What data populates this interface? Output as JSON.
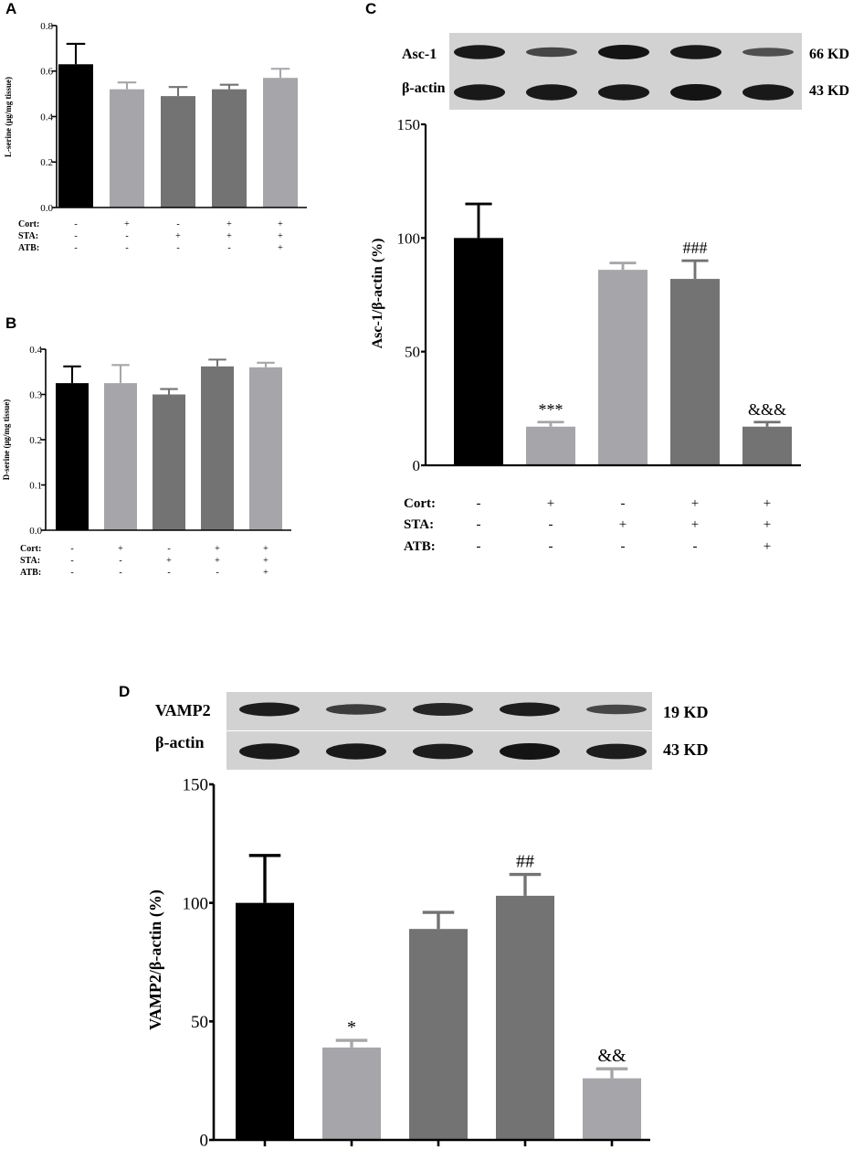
{
  "panels": {
    "A": {
      "label": "A"
    },
    "B": {
      "label": "B"
    },
    "C": {
      "label": "C",
      "blot": {
        "rows": [
          "Asc-1",
          "β-actin"
        ],
        "sizes": [
          "66 KD",
          "43 KD"
        ],
        "band_intensity": [
          [
            0.95,
            0.45,
            1.0,
            0.95,
            0.35
          ],
          [
            0.95,
            0.95,
            0.95,
            1.0,
            0.95
          ]
        ]
      }
    },
    "D": {
      "label": "D",
      "blot": {
        "rows": [
          "VAMP2",
          "β-actin"
        ],
        "sizes": [
          "19 KD",
          "43 KD"
        ],
        "band_intensity": [
          [
            0.9,
            0.55,
            0.8,
            0.9,
            0.45
          ],
          [
            0.95,
            0.95,
            0.9,
            1.0,
            0.9
          ]
        ]
      }
    }
  },
  "treatments": {
    "labels": [
      "Cort:",
      "STA:",
      "ATB:"
    ],
    "Cort": [
      "-",
      "+",
      "-",
      "+",
      "+"
    ],
    "STA": [
      "-",
      "-",
      "+",
      "+",
      "+"
    ],
    "ATB": [
      "-",
      "-",
      "-",
      "-",
      "+"
    ]
  },
  "colors": {
    "group1": "#000000",
    "group2": "#a6a6aa",
    "group3": "#737373",
    "group4": "#737373",
    "group5": "#a6a6aa",
    "c_group3": "#a6a6aa",
    "c_group4": "#737373",
    "c_group5": "#737373"
  },
  "chart_data": [
    {
      "panel": "A",
      "type": "bar",
      "ylabel": "L-serine (μg/mg tissue)",
      "ylim": [
        0,
        0.8
      ],
      "yticks": [
        "0.0",
        "0.2",
        "0.4",
        "0.6",
        "0.8"
      ],
      "values": [
        0.63,
        0.52,
        0.49,
        0.52,
        0.57
      ],
      "errors": [
        0.09,
        0.03,
        0.04,
        0.02,
        0.04
      ],
      "annotations": [
        "",
        "",
        "",
        "",
        ""
      ]
    },
    {
      "panel": "B",
      "type": "bar",
      "ylabel": "D-serine (μg/mg tissue)",
      "ylim": [
        0,
        0.4
      ],
      "yticks": [
        "0.0",
        "0.1",
        "0.2",
        "0.3",
        "0.4"
      ],
      "values": [
        0.325,
        0.325,
        0.3,
        0.362,
        0.36
      ],
      "errors": [
        0.037,
        0.04,
        0.012,
        0.015,
        0.01
      ],
      "annotations": [
        "",
        "",
        "",
        "",
        ""
      ]
    },
    {
      "panel": "C",
      "type": "bar",
      "ylabel": "Asc-1/β-actin (%)",
      "ylim": [
        0,
        150
      ],
      "yticks": [
        "0",
        "50",
        "100",
        "150"
      ],
      "values": [
        100,
        17,
        86,
        82,
        17
      ],
      "errors": [
        15,
        2,
        3,
        8,
        2
      ],
      "annotations": [
        "",
        "***",
        "",
        "###",
        "&&&"
      ]
    },
    {
      "panel": "D",
      "type": "bar",
      "ylabel": "VAMP2/β-actin (%)",
      "ylim": [
        0,
        150
      ],
      "yticks": [
        "0",
        "50",
        "100",
        "150"
      ],
      "values": [
        100,
        39,
        89,
        103,
        26
      ],
      "errors": [
        20,
        3,
        7,
        9,
        4
      ],
      "annotations": [
        "",
        "*",
        "",
        "##",
        "&&"
      ]
    }
  ]
}
